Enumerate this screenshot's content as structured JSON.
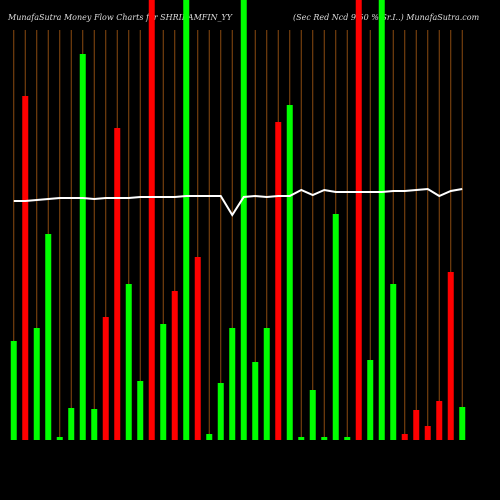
{
  "chart_data": {
    "type": "bar",
    "title": "MunafaSutra  Money Flow  Charts for SHRIRAMFIN_YY",
    "subtitle": "(Sec Red Ncd 9.50 % Sr.I..) MunafaSutra.com",
    "categories": [
      null,
      null,
      null,
      null,
      null,
      null,
      null,
      null,
      null,
      null,
      null,
      null,
      null,
      null,
      null,
      null,
      null,
      null,
      null,
      null,
      null,
      null,
      null,
      null,
      null,
      null,
      null,
      null,
      null,
      null,
      null,
      null,
      null,
      null,
      null,
      null,
      null,
      null,
      null,
      null
    ],
    "ylim": [
      0,
      440
    ],
    "grid": true,
    "grid_color": "#8a4a10",
    "bars": {
      "values": [
        99,
        344,
        112,
        206,
        3,
        32,
        386,
        31,
        123,
        312,
        156,
        59,
        440,
        116,
        149,
        440,
        183,
        6,
        57,
        112,
        440,
        78,
        112,
        318,
        335,
        3,
        50,
        3,
        226,
        3,
        440,
        80,
        440,
        156,
        6,
        30,
        14,
        39,
        168,
        33
      ],
      "colors": [
        "#00ff00",
        "#ff0000",
        "#00ff00",
        "#00ff00",
        "#00ff00",
        "#00ff00",
        "#00ff00",
        "#00ff00",
        "#ff0000",
        "#ff0000",
        "#00ff00",
        "#00ff00",
        "#ff0000",
        "#00ff00",
        "#ff0000",
        "#00ff00",
        "#ff0000",
        "#00ff00",
        "#00ff00",
        "#00ff00",
        "#00ff00",
        "#00ff00",
        "#00ff00",
        "#ff0000",
        "#00ff00",
        "#00ff00",
        "#00ff00",
        "#00ff00",
        "#00ff00",
        "#00ff00",
        "#ff0000",
        "#00ff00",
        "#00ff00",
        "#00ff00",
        "#ff0000",
        "#ff0000",
        "#ff0000",
        "#ff0000",
        "#ff0000",
        "#00ff00"
      ]
    },
    "line": {
      "color": "#ffffff",
      "values": [
        239,
        239,
        240,
        241,
        242,
        242,
        242,
        241,
        242,
        242,
        242,
        243,
        243,
        243,
        243,
        244,
        244,
        244,
        244,
        225,
        243,
        244,
        243,
        244,
        244,
        250,
        245,
        250,
        248,
        248,
        248,
        248,
        248,
        249,
        249,
        250,
        251,
        244,
        249,
        251
      ]
    }
  }
}
